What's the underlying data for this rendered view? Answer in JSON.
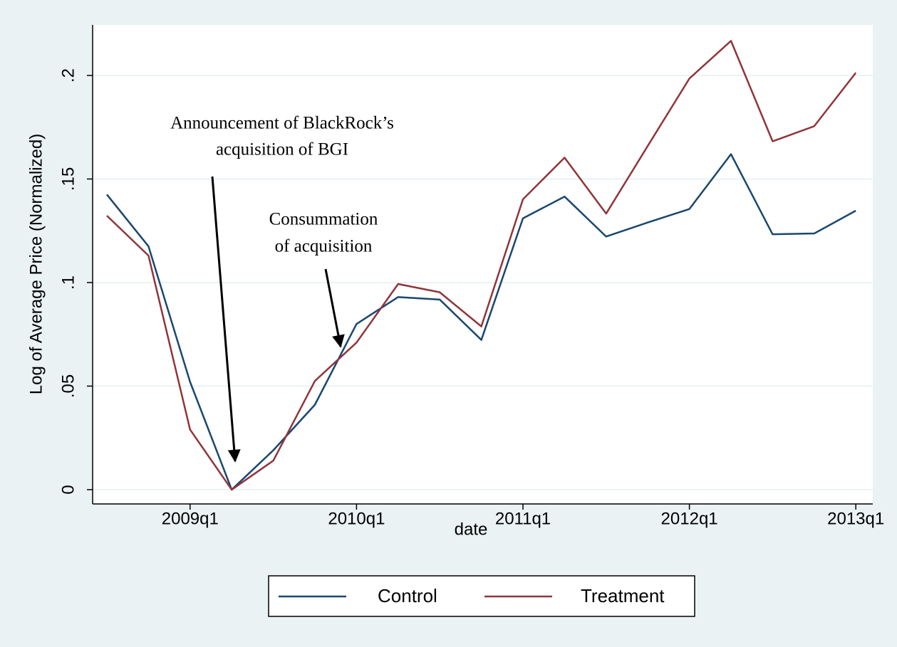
{
  "chart_data": {
    "type": "line",
    "y_label": "Log of Average Price (Normalized)",
    "x_label": "date",
    "x": [
      "2008q3",
      "2008q4",
      "2009q1",
      "2009q2",
      "2009q3",
      "2009q4",
      "2010q1",
      "2010q2",
      "2010q3",
      "2010q4",
      "2011q1",
      "2011q2",
      "2011q3",
      "2011q4",
      "2012q1",
      "2012q2",
      "2012q3",
      "2012q4",
      "2013q1"
    ],
    "xticks": [
      "2009q1",
      "2010q1",
      "2011q1",
      "2012q1",
      "2013q1"
    ],
    "series": [
      {
        "name": "Control",
        "color": "#1a476f",
        "values": [
          0.1425,
          0.1175,
          0.052,
          0,
          0.019,
          0.041,
          0.08,
          0.093,
          0.0918,
          0.0723,
          0.131,
          0.1415,
          0.1222,
          0.129,
          0.1355,
          0.162,
          0.1233,
          0.1237,
          0.1347
        ]
      },
      {
        "name": "Treatment",
        "color": "#90353b",
        "values": [
          0.1323,
          0.113,
          0.029,
          0,
          0.014,
          0.0525,
          0.071,
          0.0993,
          0.0953,
          0.0788,
          0.1402,
          0.1603,
          0.1333,
          0.166,
          0.1985,
          0.2167,
          0.1682,
          0.1755,
          0.2013
        ]
      }
    ],
    "ylim": [
      -0.0069,
      0.2244
    ],
    "yticks": [
      0,
      {
        "value": 0.05,
        "label": ".05"
      },
      {
        "value": 0.1,
        "label": ".1"
      },
      {
        "value": 0.15,
        "label": ".15"
      },
      {
        "value": 0.2,
        "label": ".2"
      }
    ],
    "grid": true,
    "legend": "bottom",
    "annotations": [
      [
        "Announcement of BlackRock’s",
        "acquisition of BGI"
      ],
      [
        "Consummation",
        "of acquisition"
      ]
    ]
  }
}
